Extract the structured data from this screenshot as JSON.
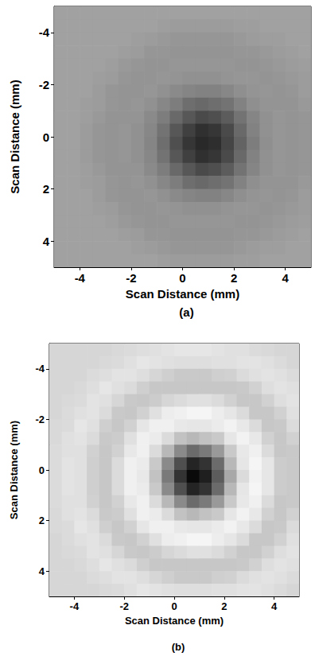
{
  "chart_data": [
    {
      "type": "heatmap",
      "title": "(a)",
      "xlabel": "Scan Distance (mm)",
      "ylabel": "Scan Distance (mm)",
      "xlim": [
        -5,
        5
      ],
      "ylim": [
        5,
        -5
      ],
      "xticks": [
        -4,
        -2,
        0,
        2,
        4
      ],
      "yticks": [
        -4,
        -2,
        0,
        2,
        4
      ],
      "grid": false,
      "x": [
        -4.75,
        -4.25,
        -3.75,
        -3.25,
        -2.75,
        -2.25,
        -1.75,
        -1.25,
        -0.75,
        -0.25,
        0.25,
        0.75,
        1.25,
        1.75,
        2.25,
        2.75,
        3.25,
        3.75,
        4.25,
        4.75
      ],
      "y": [
        -4.75,
        -4.25,
        -3.75,
        -3.25,
        -2.75,
        -2.25,
        -1.75,
        -1.25,
        -0.75,
        -0.25,
        0.25,
        0.75,
        1.25,
        1.75,
        2.25,
        2.75,
        3.25,
        3.75,
        4.25,
        4.75
      ],
      "zlim": [
        0,
        100
      ],
      "z": [
        [
          63,
          63,
          63,
          63,
          63,
          63,
          63,
          63,
          63,
          63,
          63,
          63,
          63,
          63,
          63,
          63,
          63,
          63,
          63,
          63
        ],
        [
          63,
          63,
          63,
          63,
          63,
          63,
          63,
          63,
          62,
          61,
          61,
          61,
          61,
          61,
          62,
          62,
          63,
          63,
          63,
          63
        ],
        [
          63,
          63,
          63,
          63,
          63,
          63,
          62,
          61,
          60,
          59,
          59,
          59,
          59,
          59,
          60,
          61,
          62,
          62,
          63,
          63
        ],
        [
          63,
          63,
          63,
          63,
          63,
          62,
          61,
          59,
          59,
          58,
          58,
          58,
          58,
          58,
          59,
          59,
          60,
          61,
          62,
          63
        ],
        [
          63,
          63,
          63,
          63,
          62,
          60,
          59,
          58,
          58,
          59,
          59,
          59,
          59,
          59,
          58,
          58,
          59,
          60,
          61,
          62
        ],
        [
          63,
          63,
          63,
          62,
          61,
          59,
          58,
          58,
          59,
          58,
          57,
          57,
          57,
          58,
          59,
          59,
          58,
          59,
          60,
          61
        ],
        [
          63,
          63,
          63,
          61,
          59,
          58,
          58,
          59,
          57,
          54,
          52,
          51,
          51,
          53,
          56,
          58,
          59,
          58,
          59,
          61
        ],
        [
          63,
          63,
          62,
          61,
          59,
          58,
          59,
          57,
          53,
          49,
          43,
          41,
          43,
          45,
          51,
          56,
          58,
          58,
          58,
          60
        ],
        [
          63,
          63,
          62,
          60,
          58,
          58,
          58,
          54,
          49,
          41,
          34,
          29,
          31,
          36,
          45,
          52,
          57,
          59,
          58,
          59
        ],
        [
          63,
          63,
          61,
          59,
          58,
          59,
          57,
          53,
          45,
          34,
          25,
          19,
          21,
          29,
          41,
          51,
          57,
          59,
          58,
          59
        ],
        [
          63,
          63,
          61,
          59,
          58,
          59,
          57,
          52,
          43,
          31,
          21,
          16,
          18,
          27,
          39,
          49,
          56,
          59,
          58,
          59
        ],
        [
          63,
          63,
          61,
          59,
          58,
          59,
          57,
          53,
          45,
          34,
          25,
          19,
          21,
          29,
          41,
          51,
          57,
          59,
          58,
          59
        ],
        [
          63,
          63,
          62,
          60,
          58,
          58,
          58,
          54,
          49,
          41,
          34,
          29,
          31,
          36,
          45,
          52,
          57,
          59,
          58,
          59
        ],
        [
          63,
          63,
          62,
          61,
          59,
          58,
          59,
          57,
          53,
          49,
          43,
          41,
          43,
          45,
          51,
          56,
          58,
          58,
          58,
          60
        ],
        [
          63,
          63,
          63,
          61,
          59,
          58,
          58,
          59,
          57,
          54,
          52,
          51,
          51,
          53,
          56,
          58,
          59,
          58,
          59,
          61
        ],
        [
          63,
          63,
          63,
          62,
          61,
          59,
          58,
          58,
          59,
          58,
          57,
          57,
          57,
          58,
          59,
          59,
          58,
          59,
          60,
          61
        ],
        [
          63,
          63,
          63,
          63,
          62,
          60,
          59,
          58,
          58,
          59,
          59,
          59,
          59,
          59,
          58,
          58,
          59,
          60,
          61,
          62
        ],
        [
          63,
          63,
          63,
          63,
          63,
          62,
          61,
          59,
          59,
          58,
          58,
          58,
          58,
          58,
          59,
          59,
          60,
          61,
          62,
          63
        ],
        [
          63,
          63,
          63,
          63,
          63,
          63,
          62,
          61,
          60,
          59,
          59,
          59,
          59,
          59,
          60,
          61,
          62,
          62,
          63,
          63
        ],
        [
          63,
          63,
          63,
          63,
          63,
          63,
          63,
          63,
          62,
          61,
          61,
          61,
          61,
          61,
          62,
          62,
          63,
          63,
          63,
          63
        ]
      ]
    },
    {
      "type": "heatmap",
      "title": "(b)",
      "xlabel": "Scan Distance (mm)",
      "ylabel": "Scan Distance (mm)",
      "xlim": [
        -5,
        5
      ],
      "ylim": [
        5,
        -5
      ],
      "xticks": [
        -4,
        -2,
        0,
        2,
        4
      ],
      "yticks": [
        -4,
        -2,
        0,
        2,
        4
      ],
      "grid": false,
      "x": [
        -4.75,
        -4.25,
        -3.75,
        -3.25,
        -2.75,
        -2.25,
        -1.75,
        -1.25,
        -0.75,
        -0.25,
        0.25,
        0.75,
        1.25,
        1.75,
        2.25,
        2.75,
        3.25,
        3.75,
        4.25,
        4.75
      ],
      "y": [
        -4.75,
        -4.25,
        -3.75,
        -3.25,
        -2.75,
        -2.25,
        -1.75,
        -1.25,
        -0.75,
        -0.25,
        0.25,
        0.75,
        1.25,
        1.75,
        2.25,
        2.75,
        3.25,
        3.75,
        4.25,
        4.75
      ],
      "zlim": [
        0,
        100
      ],
      "z": [
        [
          84,
          84,
          84,
          84,
          84,
          85,
          86,
          87,
          88,
          89,
          90,
          90,
          90,
          89,
          88,
          88,
          86,
          85,
          84,
          84
        ],
        [
          84,
          84,
          84,
          84,
          85,
          86,
          88,
          90,
          89,
          88,
          87,
          87,
          87,
          88,
          88,
          89,
          89,
          88,
          86,
          84
        ],
        [
          84,
          84,
          84,
          86,
          87,
          89,
          89,
          87,
          84,
          81,
          79,
          79,
          79,
          81,
          82,
          86,
          88,
          89,
          88,
          86
        ],
        [
          84,
          84,
          85,
          87,
          90,
          88,
          86,
          81,
          78,
          78,
          78,
          78,
          78,
          78,
          78,
          79,
          82,
          87,
          89,
          88
        ],
        [
          84,
          85,
          86,
          89,
          88,
          84,
          79,
          78,
          80,
          84,
          86,
          88,
          88,
          86,
          82,
          78,
          78,
          82,
          87,
          89
        ],
        [
          84,
          86,
          88,
          89,
          86,
          79,
          78,
          82,
          88,
          93,
          94,
          96,
          96,
          93,
          90,
          86,
          78,
          78,
          82,
          88
        ],
        [
          85,
          86,
          90,
          88,
          81,
          78,
          82,
          90,
          94,
          94,
          91,
          90,
          90,
          92,
          95,
          91,
          86,
          78,
          79,
          86
        ],
        [
          85,
          88,
          89,
          86,
          79,
          80,
          88,
          94,
          92,
          86,
          76,
          72,
          76,
          79,
          90,
          95,
          91,
          82,
          78,
          82
        ],
        [
          86,
          88,
          88,
          82,
          78,
          82,
          91,
          94,
          86,
          72,
          54,
          42,
          48,
          60,
          79,
          91,
          94,
          86,
          78,
          79
        ],
        [
          86,
          89,
          88,
          81,
          78,
          86,
          94,
          92,
          79,
          54,
          31,
          14,
          20,
          42,
          72,
          90,
          96,
          90,
          80,
          79
        ],
        [
          86,
          89,
          88,
          81,
          78,
          86,
          94,
          91,
          76,
          48,
          20,
          4,
          12,
          36,
          66,
          86,
          95,
          90,
          80,
          79
        ],
        [
          86,
          89,
          88,
          81,
          78,
          86,
          94,
          92,
          79,
          54,
          31,
          14,
          20,
          42,
          72,
          90,
          96,
          90,
          80,
          79
        ],
        [
          86,
          88,
          88,
          82,
          78,
          82,
          91,
          94,
          86,
          72,
          54,
          42,
          48,
          60,
          79,
          91,
          94,
          86,
          78,
          79
        ],
        [
          85,
          88,
          89,
          86,
          79,
          80,
          88,
          94,
          92,
          86,
          76,
          72,
          76,
          79,
          90,
          95,
          91,
          82,
          78,
          82
        ],
        [
          85,
          86,
          90,
          88,
          81,
          78,
          82,
          90,
          94,
          94,
          91,
          90,
          90,
          92,
          95,
          91,
          86,
          78,
          79,
          86
        ],
        [
          84,
          86,
          88,
          89,
          86,
          79,
          78,
          82,
          88,
          93,
          94,
          96,
          96,
          93,
          90,
          86,
          78,
          78,
          82,
          88
        ],
        [
          84,
          85,
          86,
          89,
          88,
          84,
          79,
          78,
          80,
          84,
          86,
          88,
          88,
          86,
          82,
          78,
          78,
          82,
          87,
          89
        ],
        [
          84,
          84,
          85,
          87,
          90,
          88,
          86,
          81,
          78,
          78,
          78,
          78,
          78,
          78,
          78,
          79,
          82,
          87,
          89,
          88
        ],
        [
          84,
          84,
          84,
          86,
          87,
          89,
          89,
          87,
          84,
          81,
          79,
          79,
          79,
          81,
          82,
          86,
          88,
          89,
          88,
          86
        ],
        [
          84,
          84,
          84,
          84,
          85,
          86,
          88,
          90,
          89,
          88,
          87,
          87,
          87,
          88,
          88,
          89,
          89,
          88,
          86,
          84
        ]
      ]
    }
  ]
}
